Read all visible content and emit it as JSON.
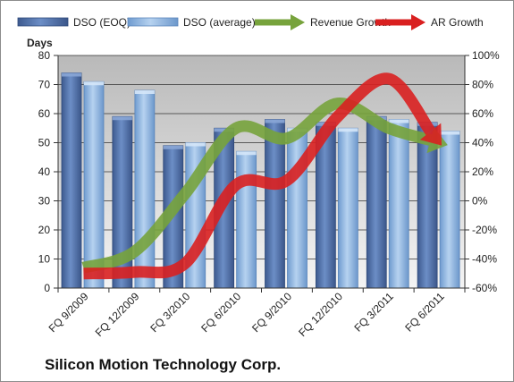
{
  "chart_data": {
    "type": "bar",
    "title": "Silicon Motion Technology Corp.",
    "categories": [
      "FQ 9/2009",
      "FQ 12/2009",
      "FQ 3/2010",
      "FQ 6/2010",
      "FQ 9/2010",
      "FQ 12/2010",
      "FQ 3/2011",
      "FQ 6/2011"
    ],
    "series": [
      {
        "name": "DSO (EOQ)",
        "kind": "bar",
        "axis": "left",
        "color": "#4f6fa8",
        "values": [
          74,
          59,
          49,
          55,
          58,
          57,
          59,
          57
        ]
      },
      {
        "name": "DSO (average)",
        "kind": "bar",
        "axis": "left",
        "color": "#8eb5e0",
        "values": [
          71,
          68,
          50,
          47,
          55,
          55,
          58,
          54
        ]
      },
      {
        "name": "Revenue Growth",
        "kind": "line",
        "axis": "right",
        "color": "#77a33c",
        "values": [
          -46,
          -35,
          5,
          50,
          43,
          67,
          50,
          40
        ]
      },
      {
        "name": "AR Growth",
        "kind": "line",
        "axis": "right",
        "color": "#d92020",
        "values": [
          -50,
          -49,
          -43,
          11,
          14,
          58,
          84,
          40
        ]
      }
    ],
    "ylabel": "Days",
    "y_left": {
      "min": 0,
      "max": 80,
      "ticks": [
        "0",
        "10",
        "20",
        "30",
        "40",
        "50",
        "60",
        "70",
        "80"
      ]
    },
    "y_right": {
      "min": -60,
      "max": 100,
      "ticks": [
        "-60%",
        "-40%",
        "-20%",
        "0%",
        "20%",
        "40%",
        "60%",
        "80%",
        "100%"
      ]
    },
    "legend_position": "top",
    "grid": true
  }
}
